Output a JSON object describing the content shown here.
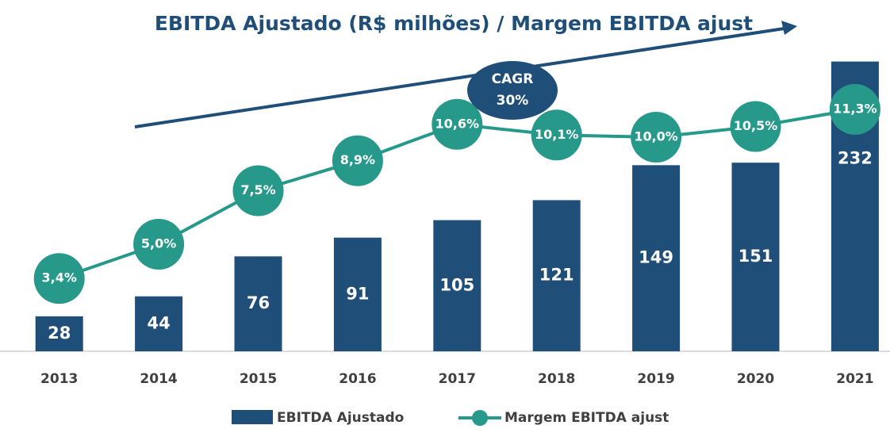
{
  "chart_data": {
    "type": "bar",
    "title": "EBITDA Ajustado (R$ milhões) / Margem EBITDA ajust",
    "annotations": [
      "CAGR",
      "30%"
    ],
    "categories": [
      "2013",
      "2014",
      "2015",
      "2016",
      "2017",
      "2018",
      "2019",
      "2020",
      "2021"
    ],
    "series": [
      {
        "name": "EBITDA Ajustado",
        "type": "bar",
        "color": "#1f4e79",
        "values": [
          28,
          44,
          76,
          91,
          105,
          121,
          149,
          151,
          232
        ]
      },
      {
        "name": "Margem EBITDA ajust",
        "type": "line",
        "axis": "y2",
        "color": "#26998b",
        "values": [
          3.4,
          5.0,
          7.5,
          8.9,
          10.6,
          10.1,
          10.0,
          10.5,
          11.3
        ],
        "value_labels": [
          "3,4%",
          "5,0%",
          "7,5%",
          "8,9%",
          "10,6%",
          "10,1%",
          "10,0%",
          "10,5%",
          "11,3%"
        ]
      }
    ],
    "ylim": [
      0,
      240
    ],
    "y2lim": [
      0,
      14
    ],
    "grid": false
  }
}
